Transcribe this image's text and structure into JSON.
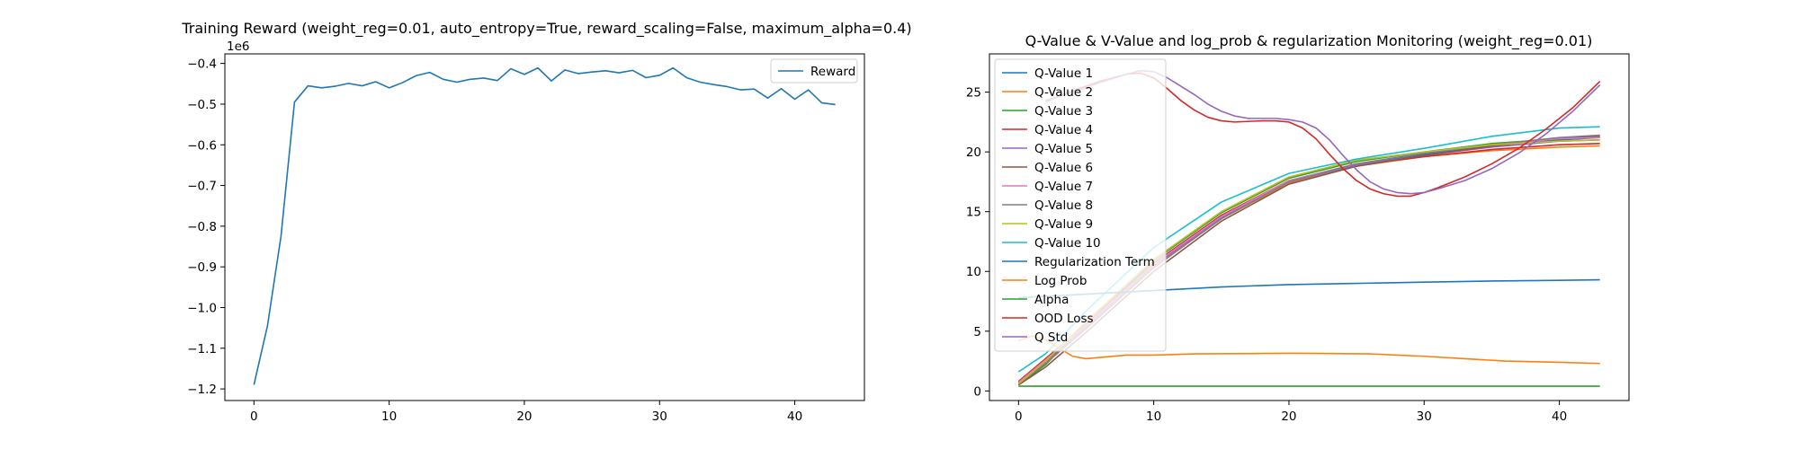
{
  "chart_data": [
    {
      "type": "line",
      "title": "Training Reward (weight_reg=0.01, auto_entropy=True, reward_scaling=False, maximum_alpha=0.4)",
      "offset_label": "1e6",
      "xlabel": "",
      "ylabel": "",
      "xlim": [
        -2.15,
        45.15
      ],
      "ylim": [
        -1.2285,
        -0.3765
      ],
      "x_ticks": [
        0,
        10,
        20,
        30,
        40
      ],
      "y_ticks": [
        -1.2,
        -1.1,
        -1.0,
        -0.9,
        -0.8,
        -0.7,
        -0.6,
        -0.5,
        -0.4
      ],
      "y_tick_labels": [
        "−1.2",
        "−1.1",
        "−1.0",
        "−0.9",
        "−0.8",
        "−0.7",
        "−0.6",
        "−0.5",
        "−0.4"
      ],
      "legend_position": "top-right",
      "series": [
        {
          "name": "Reward",
          "color": "#1f77b4",
          "x": [
            0,
            1,
            2,
            3,
            4,
            5,
            6,
            7,
            8,
            9,
            10,
            11,
            12,
            13,
            14,
            15,
            16,
            17,
            18,
            19,
            20,
            21,
            22,
            23,
            24,
            25,
            26,
            27,
            28,
            29,
            30,
            31,
            32,
            33,
            34,
            35,
            36,
            37,
            38,
            39,
            40,
            41,
            42,
            43
          ],
          "values": [
            -1.19,
            -1.045,
            -0.825,
            -0.495,
            -0.455,
            -0.46,
            -0.456,
            -0.449,
            -0.455,
            -0.445,
            -0.46,
            -0.447,
            -0.43,
            -0.422,
            -0.439,
            -0.446,
            -0.439,
            -0.436,
            -0.442,
            -0.413,
            -0.427,
            -0.411,
            -0.443,
            -0.416,
            -0.425,
            -0.421,
            -0.418,
            -0.423,
            -0.417,
            -0.435,
            -0.429,
            -0.411,
            -0.435,
            -0.446,
            -0.452,
            -0.457,
            -0.465,
            -0.463,
            -0.485,
            -0.462,
            -0.488,
            -0.465,
            -0.497,
            -0.501
          ]
        }
      ]
    },
    {
      "type": "line",
      "title": "Q-Value & V-Value and log_prob & regularization Monitoring (weight_reg=0.01)",
      "xlabel": "",
      "ylabel": "",
      "xlim": [
        -2.15,
        45.15
      ],
      "ylim": [
        -0.8,
        28.2
      ],
      "x_ticks": [
        0,
        10,
        20,
        30,
        40
      ],
      "y_ticks": [
        0,
        5,
        10,
        15,
        20,
        25
      ],
      "legend_position": "top-left",
      "series": [
        {
          "name": "Q-Value 1",
          "color": "#1f77b4",
          "points": [
            [
              0,
              0.7
            ],
            [
              2,
              2.6
            ],
            [
              5,
              5.5
            ],
            [
              10,
              10.6
            ],
            [
              15,
              14.6
            ],
            [
              20,
              17.6
            ],
            [
              25,
              19.0
            ],
            [
              30,
              19.8
            ],
            [
              35,
              20.5
            ],
            [
              40,
              21.0
            ],
            [
              43,
              21.2
            ]
          ]
        },
        {
          "name": "Q-Value 2",
          "color": "#ff7f0e",
          "points": [
            [
              0,
              0.6
            ],
            [
              2,
              2.4
            ],
            [
              5,
              5.3
            ],
            [
              10,
              10.4
            ],
            [
              15,
              14.4
            ],
            [
              20,
              17.4
            ],
            [
              25,
              18.8
            ],
            [
              30,
              19.6
            ],
            [
              35,
              20.1
            ],
            [
              40,
              20.4
            ],
            [
              43,
              20.5
            ]
          ]
        },
        {
          "name": "Q-Value 3",
          "color": "#2ca02c",
          "points": [
            [
              0,
              0.5
            ],
            [
              2,
              2.2
            ],
            [
              5,
              5.6
            ],
            [
              10,
              10.9
            ],
            [
              15,
              14.9
            ],
            [
              20,
              17.8
            ],
            [
              25,
              19.2
            ],
            [
              30,
              20.0
            ],
            [
              35,
              20.7
            ],
            [
              40,
              21.1
            ],
            [
              43,
              21.3
            ]
          ]
        },
        {
          "name": "Q-Value 4",
          "color": "#d62728",
          "points": [
            [
              0,
              0.8
            ],
            [
              2,
              2.7
            ],
            [
              5,
              5.6
            ],
            [
              10,
              10.7
            ],
            [
              15,
              14.7
            ],
            [
              20,
              17.6
            ],
            [
              25,
              18.9
            ],
            [
              30,
              19.6
            ],
            [
              35,
              20.2
            ],
            [
              40,
              20.6
            ],
            [
              43,
              20.7
            ]
          ]
        },
        {
          "name": "Q-Value 5",
          "color": "#9467bd",
          "points": [
            [
              0,
              0.6
            ],
            [
              2,
              2.5
            ],
            [
              5,
              5.4
            ],
            [
              10,
              10.5
            ],
            [
              15,
              14.5
            ],
            [
              20,
              17.5
            ],
            [
              25,
              18.9
            ],
            [
              30,
              19.7
            ],
            [
              35,
              20.4
            ],
            [
              40,
              20.9
            ],
            [
              43,
              21.0
            ]
          ]
        },
        {
          "name": "Q-Value 6",
          "color": "#8c564b",
          "points": [
            [
              0,
              0.5
            ],
            [
              2,
              2.0
            ],
            [
              5,
              4.9
            ],
            [
              10,
              10.0
            ],
            [
              15,
              14.2
            ],
            [
              20,
              17.3
            ],
            [
              25,
              18.8
            ],
            [
              30,
              19.7
            ],
            [
              35,
              20.5
            ],
            [
              40,
              21.1
            ],
            [
              43,
              21.3
            ]
          ]
        },
        {
          "name": "Q-Value 7",
          "color": "#e377c2",
          "points": [
            [
              0,
              0.7
            ],
            [
              2,
              2.6
            ],
            [
              5,
              5.5
            ],
            [
              10,
              10.6
            ],
            [
              15,
              14.6
            ],
            [
              20,
              17.6
            ],
            [
              25,
              19.0
            ],
            [
              30,
              19.9
            ],
            [
              35,
              20.6
            ],
            [
              40,
              21.1
            ],
            [
              43,
              21.2
            ]
          ]
        },
        {
          "name": "Q-Value 8",
          "color": "#7f7f7f",
          "points": [
            [
              0,
              0.6
            ],
            [
              2,
              2.3
            ],
            [
              5,
              5.2
            ],
            [
              10,
              10.3
            ],
            [
              15,
              14.4
            ],
            [
              20,
              17.5
            ],
            [
              25,
              19.0
            ],
            [
              30,
              19.9
            ],
            [
              35,
              20.6
            ],
            [
              40,
              21.2
            ],
            [
              43,
              21.4
            ]
          ]
        },
        {
          "name": "Q-Value 9",
          "color": "#bcbd22",
          "points": [
            [
              0,
              0.6
            ],
            [
              2,
              2.5
            ],
            [
              5,
              5.8
            ],
            [
              10,
              11.0
            ],
            [
              15,
              15.0
            ],
            [
              20,
              17.9
            ],
            [
              25,
              19.3
            ],
            [
              30,
              20.0
            ],
            [
              35,
              20.6
            ],
            [
              40,
              20.9
            ],
            [
              43,
              21.0
            ]
          ]
        },
        {
          "name": "Q-Value 10",
          "color": "#17becf",
          "points": [
            [
              0,
              1.6
            ],
            [
              2,
              3.1
            ],
            [
              5,
              6.7
            ],
            [
              10,
              12.0
            ],
            [
              15,
              15.8
            ],
            [
              20,
              18.2
            ],
            [
              25,
              19.4
            ],
            [
              30,
              20.3
            ],
            [
              35,
              21.3
            ],
            [
              40,
              22.0
            ],
            [
              43,
              22.1
            ]
          ]
        },
        {
          "name": "Regularization Term",
          "color": "#1f77b4",
          "points": [
            [
              0,
              7.8
            ],
            [
              5,
              8.1
            ],
            [
              10,
              8.4
            ],
            [
              15,
              8.7
            ],
            [
              20,
              8.9
            ],
            [
              25,
              9.0
            ],
            [
              30,
              9.1
            ],
            [
              35,
              9.2
            ],
            [
              40,
              9.25
            ],
            [
              43,
              9.3
            ]
          ]
        },
        {
          "name": "Log Prob",
          "color": "#ff7f0e",
          "points": [
            [
              0,
              4.2
            ],
            [
              1,
              4.6
            ],
            [
              2,
              4.3
            ],
            [
              3,
              3.6
            ],
            [
              4,
              2.9
            ],
            [
              5,
              2.7
            ],
            [
              6,
              2.8
            ],
            [
              8,
              3.0
            ],
            [
              10,
              3.0
            ],
            [
              13,
              3.1
            ],
            [
              16,
              3.12
            ],
            [
              20,
              3.15
            ],
            [
              23,
              3.13
            ],
            [
              26,
              3.1
            ],
            [
              28,
              3.0
            ],
            [
              30,
              2.9
            ],
            [
              33,
              2.7
            ],
            [
              36,
              2.5
            ],
            [
              40,
              2.4
            ],
            [
              43,
              2.3
            ]
          ]
        },
        {
          "name": "Alpha",
          "color": "#2ca02c",
          "points": [
            [
              0,
              0.4
            ],
            [
              10,
              0.4
            ],
            [
              20,
              0.4
            ],
            [
              30,
              0.4
            ],
            [
              43,
              0.4
            ]
          ]
        },
        {
          "name": "OOD Loss",
          "color": "#d62728",
          "points": [
            [
              2,
              24.2
            ],
            [
              4,
              25.1
            ],
            [
              6,
              25.9
            ],
            [
              8,
              26.5
            ],
            [
              9,
              26.6
            ],
            [
              10,
              26.2
            ],
            [
              11,
              25.3
            ],
            [
              12,
              24.3
            ],
            [
              13,
              23.5
            ],
            [
              14,
              22.9
            ],
            [
              15,
              22.6
            ],
            [
              16,
              22.5
            ],
            [
              18,
              22.6
            ],
            [
              19,
              22.6
            ],
            [
              20,
              22.5
            ],
            [
              21,
              22.0
            ],
            [
              22,
              21.1
            ],
            [
              23,
              19.8
            ],
            [
              24,
              18.6
            ],
            [
              25,
              17.6
            ],
            [
              26,
              16.9
            ],
            [
              27,
              16.5
            ],
            [
              28,
              16.3
            ],
            [
              29,
              16.3
            ],
            [
              30,
              16.6
            ],
            [
              31,
              17.0
            ],
            [
              33,
              17.9
            ],
            [
              35,
              19.0
            ],
            [
              37,
              20.3
            ],
            [
              39,
              21.9
            ],
            [
              41,
              23.7
            ],
            [
              43,
              25.9
            ]
          ]
        },
        {
          "name": "Q Std",
          "color": "#9467bd",
          "points": [
            [
              2,
              24.3
            ],
            [
              4,
              25.0
            ],
            [
              6,
              25.8
            ],
            [
              8,
              26.5
            ],
            [
              9,
              26.8
            ],
            [
              10,
              26.7
            ],
            [
              11,
              26.2
            ],
            [
              12,
              25.5
            ],
            [
              13,
              24.8
            ],
            [
              14,
              24.0
            ],
            [
              15,
              23.4
            ],
            [
              16,
              23.0
            ],
            [
              17,
              22.8
            ],
            [
              19,
              22.8
            ],
            [
              20,
              22.7
            ],
            [
              21,
              22.5
            ],
            [
              22,
              22.0
            ],
            [
              23,
              21.0
            ],
            [
              24,
              19.7
            ],
            [
              25,
              18.5
            ],
            [
              26,
              17.5
            ],
            [
              27,
              16.9
            ],
            [
              28,
              16.6
            ],
            [
              29,
              16.5
            ],
            [
              30,
              16.6
            ],
            [
              31,
              16.9
            ],
            [
              33,
              17.6
            ],
            [
              35,
              18.6
            ],
            [
              37,
              19.9
            ],
            [
              39,
              21.5
            ],
            [
              41,
              23.4
            ],
            [
              43,
              25.6
            ]
          ]
        }
      ]
    }
  ]
}
